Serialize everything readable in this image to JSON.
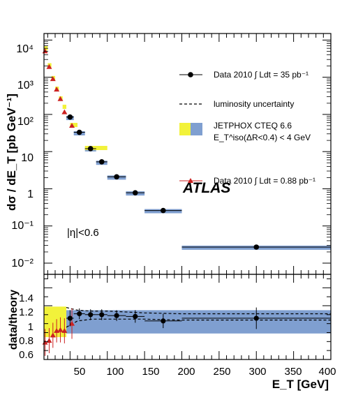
{
  "chart_data": {
    "type": "scatter",
    "colors": {
      "data2010": "#000000",
      "data088": "#cc2222",
      "theory_blue": "#7f9fd0",
      "theory_yellow": "#f2f23a",
      "axis": "#000000"
    },
    "top_panel": {
      "ylabel": "dσ / dE_T [pb GeV⁻¹]",
      "yscale": "log",
      "ylim": [
        0.005,
        15000
      ],
      "xlim": [
        15,
        400
      ],
      "ytick_labels": [
        "10⁻²",
        "10⁻¹",
        "1",
        "10",
        "10²",
        "10³",
        "10⁴"
      ],
      "annotations": {
        "experiment": "ATLAS",
        "eta_cut": "|η|<0.6"
      },
      "legend": {
        "placement": "top-right",
        "entries": [
          "Data 2010 ∫ Ldt = 35 pb⁻¹",
          "luminosity uncertainty",
          "JETPHOX CTEQ 6.6",
          "E_T^iso(ΔR<0.4) < 4 GeV",
          "Data 2010 ∫ Ldt = 0.88 pb⁻¹"
        ]
      },
      "series": [
        {
          "name": "Data 2010 ∫ Ldt = 35 pb⁻¹",
          "marker": "circle",
          "points": [
            {
              "x": 50,
              "xlo": 45,
              "xhi": 55,
              "y": 85
            },
            {
              "x": 62.5,
              "xlo": 55,
              "xhi": 70,
              "y": 33
            },
            {
              "x": 77.5,
              "xlo": 70,
              "xhi": 85,
              "y": 12
            },
            {
              "x": 92.5,
              "xlo": 85,
              "xhi": 100,
              "y": 5.3
            },
            {
              "x": 112.5,
              "xlo": 100,
              "xhi": 125,
              "y": 2.1
            },
            {
              "x": 137.5,
              "xlo": 125,
              "xhi": 150,
              "y": 0.78
            },
            {
              "x": 175,
              "xlo": 150,
              "xhi": 200,
              "y": 0.26
            },
            {
              "x": 300,
              "xlo": 200,
              "xhi": 400,
              "y": 0.027
            }
          ]
        },
        {
          "name": "Data 2010 ∫ Ldt = 0.88 pb⁻¹",
          "marker": "triangle",
          "points": [
            {
              "x": 16.5,
              "y": 5000
            },
            {
              "x": 22,
              "y": 1900
            },
            {
              "x": 27,
              "y": 900
            },
            {
              "x": 32,
              "y": 470
            },
            {
              "x": 37,
              "y": 260
            },
            {
              "x": 42.5,
              "y": 115
            },
            {
              "x": 52.5,
              "y": 50
            }
          ]
        },
        {
          "name": "JETPHOX CTEQ 6.6",
          "style": "band",
          "bins": [
            {
              "xlo": 15,
              "xhi": 20,
              "y": 6000,
              "color": "theory_yellow"
            },
            {
              "xlo": 20,
              "xhi": 25,
              "y": 2100,
              "color": "theory_yellow"
            },
            {
              "xlo": 25,
              "xhi": 30,
              "y": 950,
              "color": "theory_yellow"
            },
            {
              "xlo": 30,
              "xhi": 35,
              "y": 490,
              "color": "theory_yellow"
            },
            {
              "xlo": 35,
              "xhi": 40,
              "y": 270,
              "color": "theory_yellow"
            },
            {
              "xlo": 40,
              "xhi": 45,
              "y": 160,
              "color": "theory_yellow"
            },
            {
              "xlo": 45,
              "xhi": 55,
              "y": 80,
              "color": "theory_blue"
            },
            {
              "xlo": 50,
              "xhi": 60,
              "y": 52,
              "color": "theory_yellow"
            },
            {
              "xlo": 55,
              "xhi": 70,
              "y": 31,
              "color": "theory_blue"
            },
            {
              "xlo": 70,
              "xhi": 85,
              "y": 11.5,
              "color": "theory_blue"
            },
            {
              "xlo": 70,
              "xhi": 100,
              "y": 12.5,
              "color": "theory_yellow"
            },
            {
              "xlo": 85,
              "xhi": 100,
              "y": 5.0,
              "color": "theory_blue"
            },
            {
              "xlo": 100,
              "xhi": 125,
              "y": 2.0,
              "color": "theory_blue"
            },
            {
              "xlo": 125,
              "xhi": 150,
              "y": 0.75,
              "color": "theory_blue"
            },
            {
              "xlo": 150,
              "xhi": 200,
              "y": 0.25,
              "color": "theory_blue"
            },
            {
              "xlo": 200,
              "xhi": 400,
              "y": 0.026,
              "color": "theory_blue"
            }
          ]
        }
      ]
    },
    "bottom_panel": {
      "ylabel": "data/theory",
      "xlabel": "E_T [GeV]",
      "ylim": [
        0.6,
        1.55
      ],
      "xlim": [
        15,
        400
      ],
      "ytick_labels": [
        "0.6",
        "0.8",
        "1",
        "1.2",
        "1.4"
      ],
      "xtick_labels": [
        "50",
        "100",
        "150",
        "200",
        "250",
        "300",
        "350",
        "400"
      ],
      "series": [
        {
          "name": "Data 2010 ∫ Ldt = 35 pb⁻¹",
          "points": [
            {
              "x": 50,
              "y": 1.06,
              "err": 0.09
            },
            {
              "x": 62.5,
              "y": 1.11,
              "err": 0.06
            },
            {
              "x": 77.5,
              "y": 1.1,
              "err": 0.06
            },
            {
              "x": 92.5,
              "y": 1.1,
              "err": 0.06
            },
            {
              "x": 112.5,
              "y": 1.09,
              "err": 0.06
            },
            {
              "x": 137.5,
              "y": 1.08,
              "err": 0.07
            },
            {
              "x": 175,
              "y": 1.03,
              "err": 0.08
            },
            {
              "x": 300,
              "y": 1.06,
              "err": 0.12
            }
          ]
        },
        {
          "name": "Data 2010 ∫ Ldt = 0.88 pb⁻¹",
          "points": [
            {
              "x": 16.5,
              "y": 0.79,
              "err": 0.15
            },
            {
              "x": 22,
              "y": 0.81,
              "err": 0.14
            },
            {
              "x": 27,
              "y": 0.87,
              "err": 0.14
            },
            {
              "x": 32,
              "y": 0.92,
              "err": 0.13
            },
            {
              "x": 37,
              "y": 0.93,
              "err": 0.14
            },
            {
              "x": 42.5,
              "y": 0.92,
              "err": 0.14
            },
            {
              "x": 52.5,
              "y": 1.0,
              "err": 0.17
            }
          ]
        },
        {
          "name": "luminosity uncertainty",
          "x": [
            45,
            60,
            80,
            100,
            125,
            150,
            200,
            400
          ],
          "upper": [
            1.18,
            1.15,
            1.14,
            1.14,
            1.13,
            1.12,
            1.11,
            1.11
          ],
          "lower": [
            0.96,
            1.03,
            1.05,
            1.05,
            1.05,
            1.05,
            1.04,
            1.04
          ]
        }
      ],
      "bands": [
        {
          "xlo": 15,
          "xhi": 45,
          "ylo": 0.85,
          "yhi": 1.19,
          "color": "theory_yellow"
        },
        {
          "xlo": 45,
          "xhi": 400,
          "ylo": 0.89,
          "yhi": 1.15,
          "color": "theory_blue"
        }
      ]
    }
  }
}
